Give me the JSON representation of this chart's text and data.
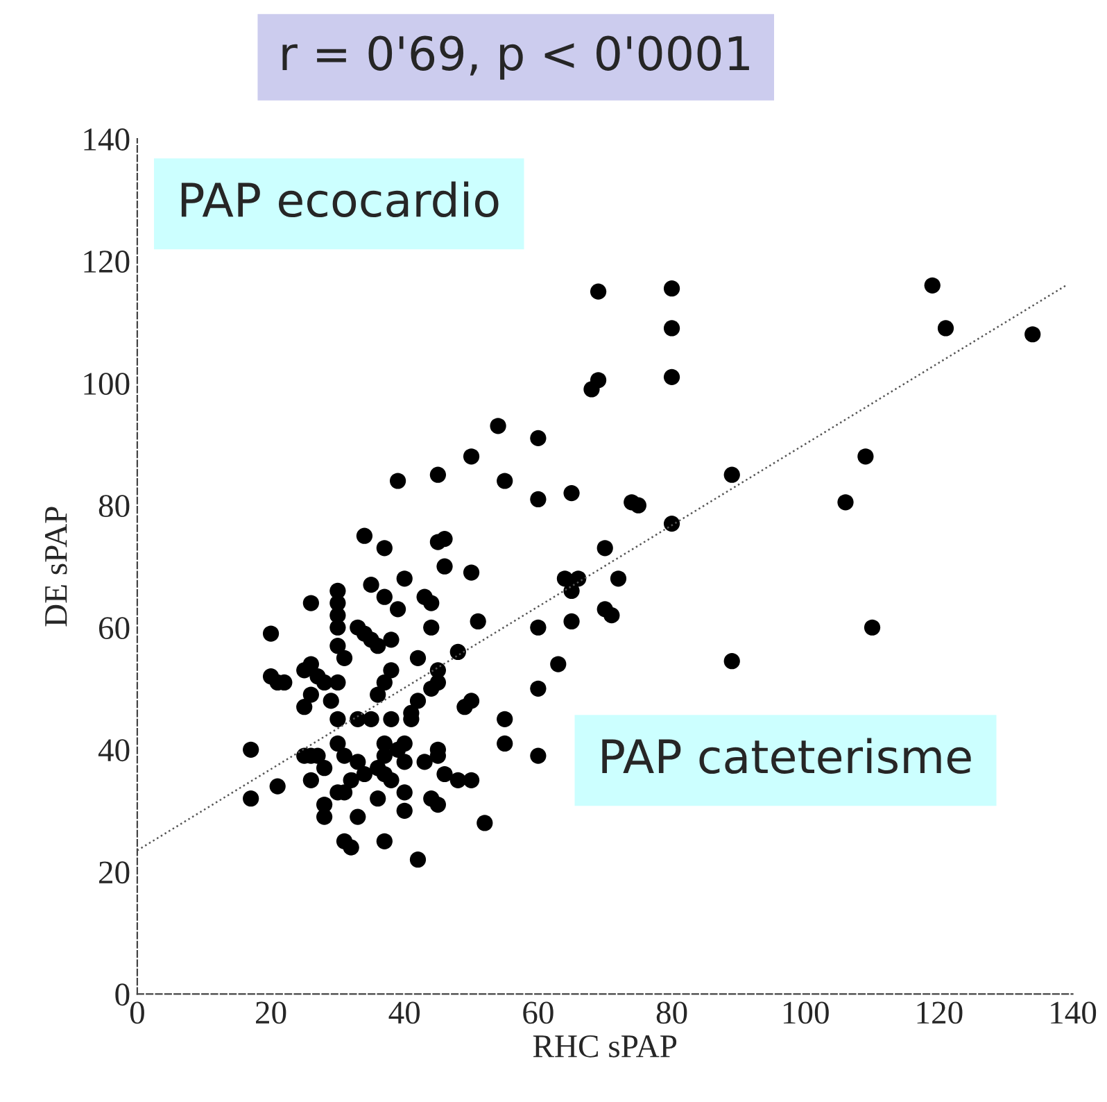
{
  "chart_data": {
    "type": "scatter",
    "title": "r = 0'69, p < 0'0001",
    "xlabel": "RHC sPAP",
    "ylabel": "DE sPAP",
    "annotations": [
      "PAP ecocardio",
      "PAP cateterisme"
    ],
    "xlim": [
      0,
      140
    ],
    "ylim": [
      0,
      140
    ],
    "xticks": [
      0,
      20,
      40,
      60,
      80,
      100,
      120,
      140
    ],
    "yticks": [
      0,
      20,
      40,
      60,
      80,
      100,
      120,
      140
    ],
    "grid": false,
    "legend": false,
    "marker": "circle",
    "series": [
      {
        "color": "#000000",
        "x": [
          69,
          80,
          80,
          80,
          69,
          68,
          119,
          121,
          134,
          54,
          60,
          50,
          45,
          39,
          55,
          60,
          65,
          75,
          74,
          80,
          89,
          109,
          106,
          110,
          89,
          34,
          37,
          45,
          46,
          46,
          40,
          50,
          35,
          37,
          43,
          44,
          39,
          26,
          30,
          30,
          30,
          30,
          33,
          34,
          35,
          36,
          38,
          20,
          44,
          51,
          60,
          66,
          64,
          65,
          70,
          72,
          70,
          71,
          65,
          63,
          42,
          48,
          45,
          45,
          44,
          42,
          41,
          50,
          49,
          60,
          55,
          55,
          60,
          20,
          21,
          22,
          25,
          26,
          27,
          28,
          30,
          26,
          29,
          38,
          37,
          36,
          31,
          30,
          25,
          33,
          30,
          35,
          38,
          41,
          17,
          17,
          21,
          25,
          26,
          27,
          28,
          30,
          31,
          33,
          32,
          30,
          31,
          34,
          36,
          37,
          37,
          37,
          39,
          40,
          40,
          38,
          40,
          43,
          45,
          45,
          46,
          48,
          50,
          44,
          45,
          36,
          33,
          40,
          28,
          28,
          31,
          32,
          37,
          42,
          52,
          26
        ],
        "values": [
          115,
          115.5,
          109,
          101,
          100.5,
          99,
          116,
          109,
          108,
          93,
          91,
          88,
          85,
          84,
          84,
          81,
          82,
          80,
          80.5,
          77,
          85,
          88,
          80.5,
          60,
          54.5,
          75,
          73,
          74,
          74.5,
          70,
          68,
          69,
          67,
          65,
          65,
          64,
          63,
          64,
          66,
          64,
          62,
          60,
          60,
          59,
          58,
          57,
          58,
          59,
          60,
          61,
          60,
          68,
          68,
          66,
          73,
          68,
          63,
          62,
          61,
          54,
          55,
          56,
          53,
          51,
          50,
          48,
          46,
          48,
          47,
          50,
          45,
          41,
          39,
          52,
          51,
          51,
          53,
          54,
          52,
          51,
          51,
          49,
          48,
          53,
          51,
          49,
          55,
          57,
          47,
          45,
          45,
          45,
          45,
          45,
          40,
          32,
          34,
          39,
          39,
          39,
          37,
          41,
          39,
          38,
          35,
          33,
          33,
          36,
          37,
          41,
          39,
          36,
          40,
          41,
          38,
          35,
          33,
          38,
          40,
          39,
          36,
          35,
          35,
          32,
          31,
          32,
          29,
          30,
          31,
          29,
          25,
          24,
          25,
          22,
          28,
          35
        ]
      },
      {
        "type": "line",
        "color": "#555555",
        "line_style": "dotted",
        "marker": "none",
        "x": [
          0,
          139
        ],
        "values": [
          23.5,
          116
        ]
      }
    ]
  }
}
